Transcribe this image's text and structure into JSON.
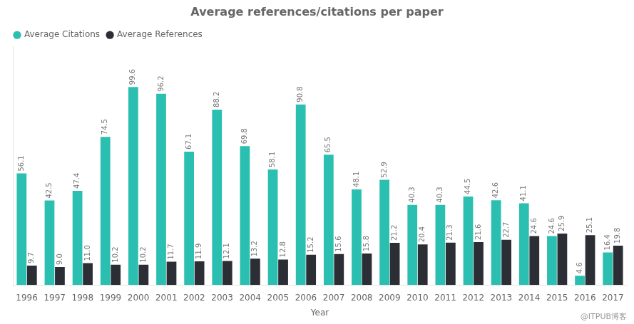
{
  "chart_data": {
    "type": "bar",
    "title": "Average references/citations per paper",
    "x_label": "Year",
    "categories": [
      "1996",
      "1997",
      "1998",
      "1999",
      "2000",
      "2001",
      "2002",
      "2003",
      "2004",
      "2005",
      "2006",
      "2007",
      "2008",
      "2009",
      "2010",
      "2011",
      "2012",
      "2013",
      "2014",
      "2015",
      "2016",
      "2017"
    ],
    "series": [
      {
        "name": "Average Citations",
        "color": "#2abfb0",
        "values": [
          56.1,
          42.5,
          47.4,
          74.5,
          99.6,
          96.2,
          67.1,
          88.2,
          69.8,
          58.1,
          90.8,
          65.5,
          48.1,
          52.9,
          40.3,
          40.3,
          44.5,
          42.6,
          41.1,
          24.6,
          4.6,
          16.4
        ],
        "value_labels": [
          "56.1",
          "42.5",
          "47.4",
          "74.5",
          "99.6",
          "96.2",
          "67.1",
          "88.2",
          "69.8",
          "58.1",
          "90.8",
          "65.5",
          "48.1",
          "52.9",
          "40.3",
          "40.3",
          "44.5",
          "42.6",
          "41.1",
          "24.6",
          "4.6",
          "16.4"
        ]
      },
      {
        "name": "Average References",
        "color": "#2b2e34",
        "values": [
          9.7,
          9.0,
          11.0,
          10.2,
          10.2,
          11.7,
          11.9,
          12.1,
          13.2,
          12.8,
          15.2,
          15.6,
          15.8,
          21.2,
          20.4,
          21.3,
          21.6,
          22.7,
          24.6,
          25.9,
          25.1,
          19.8
        ],
        "value_labels": [
          "9.7",
          "9.0",
          "11.0",
          "10.2",
          "10.2",
          "11.7",
          "11.9",
          "12.1",
          "13.2",
          "12.8",
          "15.2",
          "15.6",
          "15.8",
          "21.2",
          "20.4",
          "21.3",
          "21.6",
          "22.7",
          "24.6",
          "25.9",
          "25.1",
          "19.8"
        ]
      }
    ],
    "ylim": [
      0,
      120
    ],
    "grid": false,
    "legend": "upper left",
    "data_labels": true,
    "tick_labels": "x",
    "annotations": [
      "@ITPUB博客"
    ]
  }
}
